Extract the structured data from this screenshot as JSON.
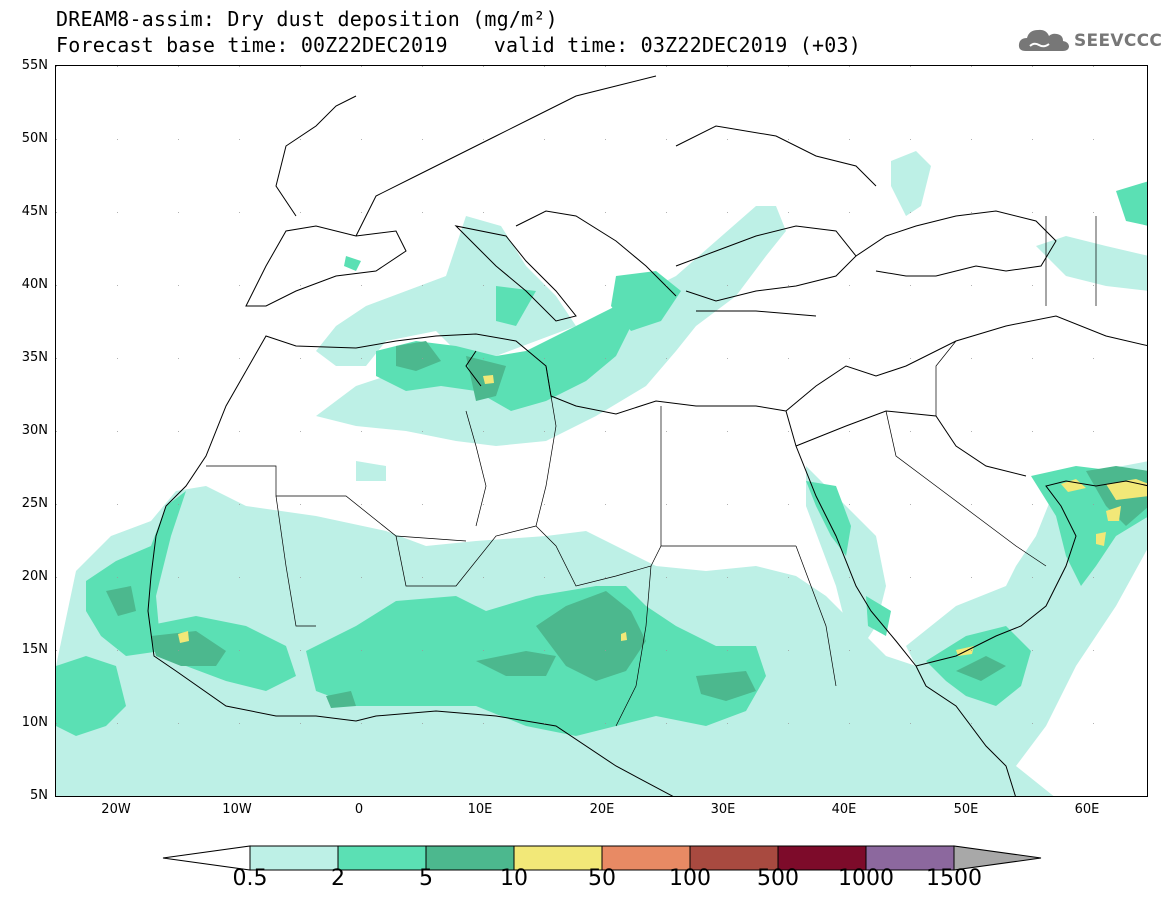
{
  "header": {
    "title_line1": "DREAM8-assim: Dry dust deposition (mg/m²)",
    "base_time": "Forecast base time: 00Z22DEC2019",
    "valid_time": "valid time: 03Z22DEC2019 (+03)"
  },
  "logo": {
    "text": "SEEVCCC",
    "icon": "cloud-icon"
  },
  "map": {
    "region": "North Africa, Mediterranean and Middle East",
    "projection": "lat-lon",
    "lon_range": [
      -25,
      65
    ],
    "lat_range": [
      5,
      55
    ],
    "grid_dots": true,
    "lat_ticks": [
      "5N",
      "10N",
      "15N",
      "20N",
      "25N",
      "30N",
      "35N",
      "40N",
      "45N",
      "50N",
      "55N"
    ],
    "lon_ticks": [
      "20W",
      "10W",
      "0",
      "10E",
      "20E",
      "30E",
      "40E",
      "50E",
      "60E"
    ]
  },
  "legend": {
    "labels": [
      "0.5",
      "2",
      "5",
      "10",
      "50",
      "100",
      "500",
      "1000",
      "1500"
    ],
    "colors": [
      "#ffffff",
      "#bdf0e6",
      "#5be0b4",
      "#4cb88e",
      "#f2e878",
      "#e88a64",
      "#a84a40",
      "#7d0b2a",
      "#8c689e",
      "#a8a8a8"
    ],
    "units": "mg/m²"
  }
}
